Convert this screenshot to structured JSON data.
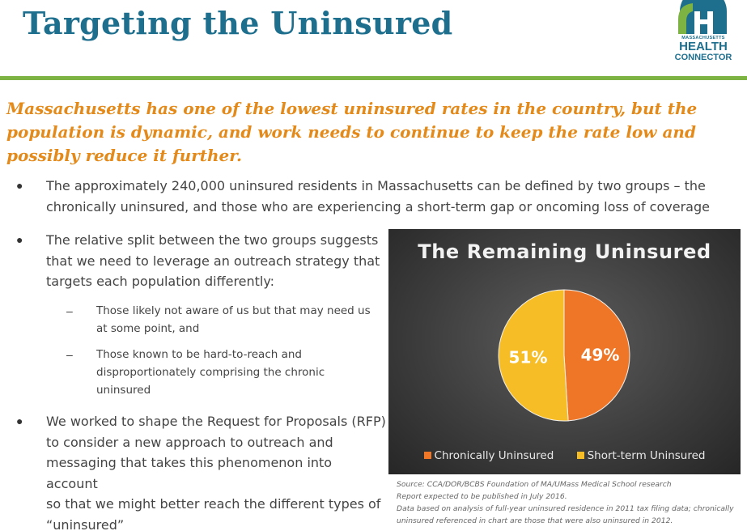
{
  "header": {
    "title": "Targeting the Uninsured",
    "logo": {
      "small": "MASSACHUSETTS",
      "big": "HEALTH",
      "mid": "CONNECTOR"
    }
  },
  "subtitle": {
    "line1": "Massachusetts has one of the lowest uninsured rates in the country, but the",
    "line2": "population is dynamic, and work needs to continue to keep the rate low and",
    "line3": "possibly reduce it further."
  },
  "bullets": {
    "b1": {
      "line1": "The approximately 240,000 uninsured residents in Massachusetts can be defined by two groups – the",
      "line2": "chronically uninsured, and those who are experiencing a short-term gap or oncoming loss of coverage"
    },
    "b2": {
      "line1": "The relative split between the two groups suggests",
      "line2": "that we need to leverage an outreach strategy that",
      "line3": "targets each population differently:"
    },
    "sub1": {
      "line1": "Those likely not aware of us but that may need us",
      "line2": "at some point, and"
    },
    "sub2": {
      "line1": "Those known to be hard-to-reach and",
      "line2": "disproportionately comprising the chronic",
      "line3": "uninsured"
    },
    "b3": {
      "line1": "We worked to shape the Request for Proposals (RFP)",
      "line2": "to consider a new approach to outreach and",
      "line3": "messaging that takes this phenomenon into account",
      "line4": "so that we might better reach the different types of",
      "line5": "“uninsured”"
    }
  },
  "source": {
    "line1": "Source: CCA/DOR/BCBS Foundation of MA/UMass Medical School research",
    "line2": "Report expected to be published in July 2016.",
    "line3": "Data based on analysis of full-year uninsured residence in 2011 tax filing data; chronically",
    "line4": "uninsured referenced in chart are those that were also uninsured in 2012."
  },
  "colors": {
    "title": "#1e6f8e",
    "accent_green": "#7cb342",
    "subtitle": "#e38a1a",
    "chronic": "#ee7626",
    "short_term": "#f7bd26"
  },
  "chart_data": {
    "type": "pie",
    "title": "The Remaining Uninsured",
    "series": [
      {
        "name": "Chronically Uninsured",
        "value": 49,
        "label": "49%",
        "color": "#ee7626"
      },
      {
        "name": "Short-term Uninsured",
        "value": 51,
        "label": "51%",
        "color": "#f7bd26"
      }
    ],
    "legend_position": "bottom"
  }
}
